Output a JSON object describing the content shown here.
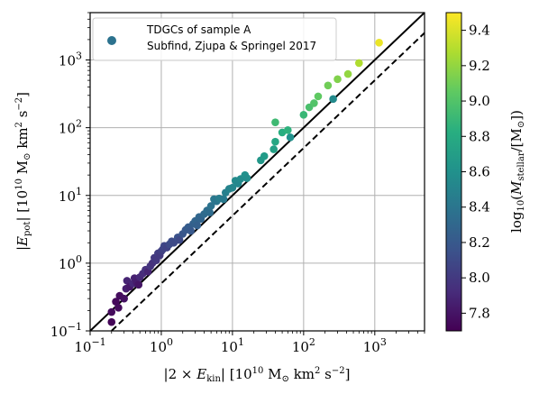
{
  "chart_data": {
    "type": "scatter",
    "xlabel": "|2 × E_kin| [10^10 M_⊙ km^2 s^−2]",
    "ylabel": "|E_pot| [10^10 M_⊙ km^2 s^−2]",
    "colorbar_label": "log_10(M_stellar/[M_⊙])",
    "x_scale": "log",
    "y_scale": "log",
    "xlim": [
      0.1,
      5000
    ],
    "ylim": [
      0.1,
      5000
    ],
    "x_ticks": [
      "10^−1",
      "10^0",
      "10^1",
      "10^2",
      "10^3"
    ],
    "y_ticks": [
      "10^−1",
      "10^0",
      "10^1",
      "10^2",
      "10^3"
    ],
    "colorbar_range": [
      7.7,
      9.5
    ],
    "colorbar_ticks": [
      "7.8",
      "8.0",
      "8.2",
      "8.4",
      "8.6",
      "8.8",
      "9.0",
      "9.2",
      "9.4"
    ],
    "grid": true,
    "legend": {
      "position": "top-left",
      "entries": [
        "TDGCs of sample A",
        "Subfind, Zjupa & Springel 2017"
      ]
    },
    "lines": [
      {
        "style": "solid",
        "slope": 1,
        "intercept": 0,
        "color": "#000000"
      },
      {
        "style": "dashed",
        "slope": 1,
        "intercept": -0.3,
        "color": "#000000"
      }
    ],
    "series": [
      {
        "points": [
          [
            0.2,
            0.135,
            7.72
          ],
          [
            0.2,
            0.19,
            7.75
          ],
          [
            0.26,
            0.33,
            7.76
          ],
          [
            0.23,
            0.27,
            7.74
          ],
          [
            0.25,
            0.22,
            7.75
          ],
          [
            0.3,
            0.3,
            7.78
          ],
          [
            0.32,
            0.42,
            7.85
          ],
          [
            0.33,
            0.55,
            7.88
          ],
          [
            0.36,
            0.45,
            7.82
          ],
          [
            0.4,
            0.5,
            7.9
          ],
          [
            0.42,
            0.6,
            7.86
          ],
          [
            0.45,
            0.52,
            7.84
          ],
          [
            0.48,
            0.48,
            7.8
          ],
          [
            0.5,
            0.62,
            7.9
          ],
          [
            0.55,
            0.7,
            7.92
          ],
          [
            0.6,
            0.8,
            7.95
          ],
          [
            0.65,
            0.75,
            7.88
          ],
          [
            0.7,
            0.9,
            7.97
          ],
          [
            0.75,
            1.0,
            7.96
          ],
          [
            0.8,
            1.2,
            8.0
          ],
          [
            0.85,
            1.1,
            7.99
          ],
          [
            0.9,
            1.4,
            8.02
          ],
          [
            0.95,
            1.3,
            8.0
          ],
          [
            1.0,
            1.5,
            8.03
          ],
          [
            1.05,
            1.6,
            8.05
          ],
          [
            1.1,
            1.8,
            8.08
          ],
          [
            1.2,
            1.7,
            8.05
          ],
          [
            1.3,
            1.9,
            8.1
          ],
          [
            1.4,
            2.1,
            8.12
          ],
          [
            1.5,
            2.0,
            8.1
          ],
          [
            1.7,
            2.4,
            8.15
          ],
          [
            1.8,
            2.2,
            8.1
          ],
          [
            2.0,
            2.7,
            8.18
          ],
          [
            2.2,
            3.1,
            8.2
          ],
          [
            2.4,
            3.4,
            8.22
          ],
          [
            2.6,
            3.0,
            8.2
          ],
          [
            2.8,
            3.8,
            8.25
          ],
          [
            3.0,
            4.2,
            8.28
          ],
          [
            3.2,
            3.6,
            8.25
          ],
          [
            3.4,
            4.8,
            8.3
          ],
          [
            3.6,
            4.5,
            8.28
          ],
          [
            4.0,
            5.3,
            8.32
          ],
          [
            4.4,
            6.0,
            8.35
          ],
          [
            4.8,
            5.6,
            8.33
          ],
          [
            5.0,
            7.0,
            8.38
          ],
          [
            5.5,
            8.8,
            8.42
          ],
          [
            6.0,
            8.2,
            8.4
          ],
          [
            6.5,
            9.0,
            8.45
          ],
          [
            7.5,
            8.8,
            8.43
          ],
          [
            8.0,
            11.0,
            8.47
          ],
          [
            9.0,
            12.5,
            8.5
          ],
          [
            10.0,
            13.0,
            8.52
          ],
          [
            11.0,
            16.5,
            8.55
          ],
          [
            12.0,
            15.0,
            8.53
          ],
          [
            13.0,
            17.5,
            8.56
          ],
          [
            15.0,
            20.0,
            8.6
          ],
          [
            16.0,
            18.0,
            8.58
          ],
          [
            25.0,
            33.0,
            8.65
          ],
          [
            28.0,
            38.0,
            8.68
          ],
          [
            38.0,
            48.0,
            8.72
          ],
          [
            40.0,
            62.0,
            8.76
          ],
          [
            50.0,
            85.0,
            8.82
          ],
          [
            60.0,
            92.0,
            8.85
          ],
          [
            40.0,
            120.0,
            8.92
          ],
          [
            65.0,
            72.0,
            8.6
          ],
          [
            100.0,
            155.0,
            8.9
          ],
          [
            120.0,
            200.0,
            8.97
          ],
          [
            140.0,
            230.0,
            9.0
          ],
          [
            160.0,
            290.0,
            9.05
          ],
          [
            220.0,
            420.0,
            9.1
          ],
          [
            260.0,
            265.0,
            8.55
          ],
          [
            300.0,
            520.0,
            9.15
          ],
          [
            420.0,
            620.0,
            9.2
          ],
          [
            600.0,
            900.0,
            9.28
          ],
          [
            1150.0,
            1800.0,
            9.45
          ]
        ]
      }
    ]
  }
}
